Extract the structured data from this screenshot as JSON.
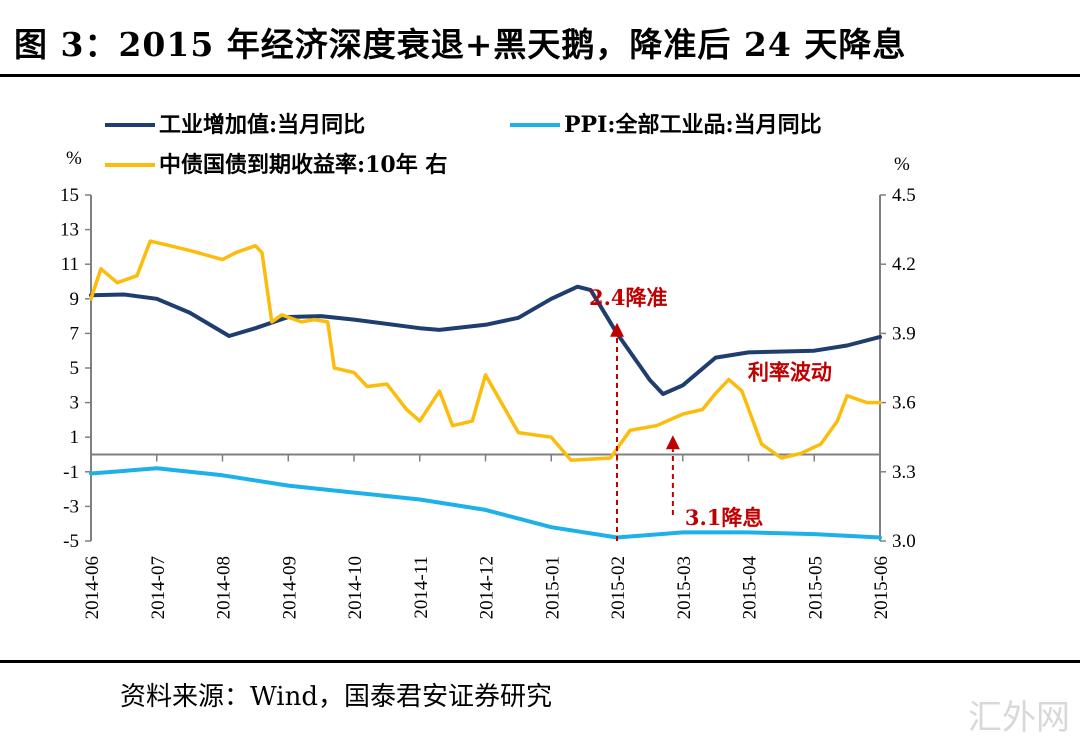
{
  "title": "图 3：2015 年经济深度衰退+黑天鹅，降准后 24 天降息",
  "source": "资料来源：Wind，国泰君安证券研究",
  "watermark": "汇外网",
  "chart_data": {
    "type": "line",
    "title": "图 3：2015 年经济深度衰退+黑天鹅，降准后 24 天降息",
    "categories": [
      "2014-06",
      "2014-07",
      "2014-08",
      "2014-09",
      "2014-10",
      "2014-11",
      "2014-12",
      "2015-01",
      "2015-02",
      "2015-03",
      "2015-04",
      "2015-05",
      "2015-06"
    ],
    "left_axis": {
      "unit": "%",
      "ylim": [
        -5,
        15
      ],
      "ticks": [
        "15",
        "13",
        "11",
        "9",
        "7",
        "5",
        "3",
        "1",
        "-1",
        "-3",
        "-5"
      ]
    },
    "right_axis": {
      "unit": "%",
      "ylim": [
        3.0,
        4.5
      ],
      "ticks": [
        "4.5",
        "4.2",
        "3.9",
        "3.6",
        "3.3",
        "3.0"
      ]
    },
    "series": [
      {
        "name": "工业增加值:当月同比",
        "axis": "left",
        "color": "#1f3d6e",
        "x": [
          0,
          0.5,
          1,
          1.5,
          2.1,
          2.5,
          3,
          3.5,
          4,
          5,
          5.3,
          6,
          6.5,
          7,
          7.4,
          7.6,
          8,
          8.5,
          8.7,
          9,
          9.5,
          10,
          11,
          11.5,
          12
        ],
        "y": [
          9.2,
          9.25,
          9.0,
          8.2,
          6.85,
          7.3,
          7.95,
          8.0,
          7.8,
          7.3,
          7.2,
          7.5,
          7.9,
          9.0,
          9.7,
          9.5,
          7.0,
          4.3,
          3.5,
          4.0,
          5.6,
          5.9,
          6.0,
          6.3,
          6.8
        ]
      },
      {
        "name": "PPI:全部工业品:当月同比",
        "axis": "left",
        "color": "#1eb0e8",
        "x": [
          0,
          1,
          2,
          3,
          4,
          5,
          6,
          7,
          8,
          9,
          10,
          11,
          12
        ],
        "y": [
          -1.1,
          -0.8,
          -1.2,
          -1.8,
          -2.2,
          -2.6,
          -3.2,
          -4.2,
          -4.8,
          -4.5,
          -4.5,
          -4.6,
          -4.8
        ]
      },
      {
        "name": "中债国债到期收益率:10年 右",
        "axis": "right",
        "color": "#fbbc0c",
        "x": [
          0,
          0.15,
          0.4,
          0.7,
          0.9,
          1.2,
          1.5,
          2.0,
          2.2,
          2.5,
          2.6,
          2.75,
          2.9,
          3.2,
          3.4,
          3.6,
          3.7,
          4,
          4.2,
          4.5,
          4.8,
          5,
          5.3,
          5.5,
          5.8,
          6,
          6.2,
          6.5,
          7,
          7.3,
          7.9,
          8,
          8.2,
          8.6,
          9,
          9.3,
          9.5,
          9.7,
          9.9,
          10.2,
          10.5,
          10.8,
          11.1,
          11.35,
          11.5,
          11.8,
          12
        ],
        "y": [
          4.05,
          4.18,
          4.12,
          4.15,
          4.3,
          4.28,
          4.26,
          4.22,
          4.25,
          4.28,
          4.25,
          3.95,
          3.98,
          3.95,
          3.96,
          3.95,
          3.75,
          3.73,
          3.67,
          3.68,
          3.57,
          3.52,
          3.65,
          3.5,
          3.52,
          3.72,
          3.62,
          3.47,
          3.45,
          3.35,
          3.36,
          3.4,
          3.48,
          3.5,
          3.55,
          3.57,
          3.64,
          3.7,
          3.65,
          3.42,
          3.36,
          3.38,
          3.42,
          3.52,
          3.63,
          3.6,
          3.6
        ]
      }
    ],
    "annotations": [
      {
        "text": "2.4降准",
        "x": 8,
        "arrow_from": -5,
        "arrow_to": 7.5
      },
      {
        "text": "3.1降息",
        "x": 8.85,
        "arrow_from": -3.5,
        "arrow_to": 1
      },
      {
        "text": "利率波动",
        "x": 10.6,
        "y": 4.8
      }
    ],
    "legend_position": "top"
  }
}
